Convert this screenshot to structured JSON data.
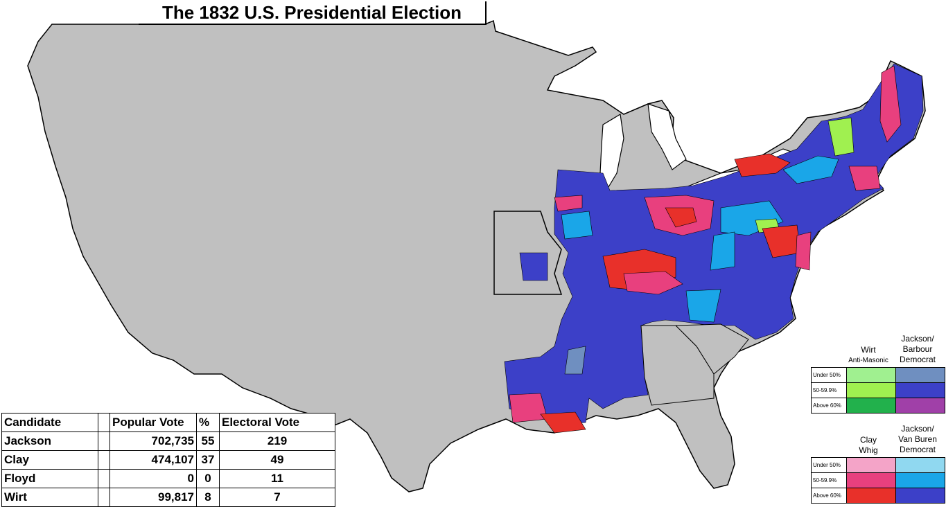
{
  "title": "The 1832 U.S. Presidential Election",
  "colors": {
    "land": "#c0c0c0",
    "border": "#000000",
    "jackson_barbour_dark": "#3c40c8",
    "jackson_vb_light": "#1aa6e8",
    "clay_strong": "#e8302a",
    "clay_mid": "#e8407e",
    "clay_light": "#f4a4c8",
    "wirt_green": "#22b14c",
    "wirt_light": "#a0f07a"
  },
  "results_table": {
    "headers": [
      "Candidate",
      "Popular Vote",
      "%",
      "Electoral Vote"
    ],
    "rows": [
      {
        "candidate": "Jackson",
        "popular_vote": "702,735",
        "pct": "55",
        "electoral_vote": "219"
      },
      {
        "candidate": "Clay",
        "popular_vote": "474,107",
        "pct": "37",
        "electoral_vote": "49"
      },
      {
        "candidate": "Floyd",
        "popular_vote": "0",
        "pct": "0",
        "electoral_vote": "11"
      },
      {
        "candidate": "Wirt",
        "popular_vote": "99,817",
        "pct": "8",
        "electoral_vote": "7"
      }
    ]
  },
  "legend_top": {
    "col1": {
      "title": "Wirt",
      "subtitle": "Anti-Masonic"
    },
    "col2": {
      "title_lines": [
        "Jackson/",
        "Barbour",
        "Democrat"
      ]
    },
    "rows": [
      {
        "label": "Under 50%",
        "c1": "#a0f090",
        "c2": "#6f8fc0"
      },
      {
        "label": "50-59.9%",
        "c1": "#a0f050",
        "c2": "#3c40c8"
      },
      {
        "label": "Above 60%",
        "c1": "#22b14c",
        "c2": "#a040a8"
      }
    ]
  },
  "legend_bottom": {
    "col1": {
      "title_lines": [
        "Clay",
        "Whig"
      ]
    },
    "col2": {
      "title_lines": [
        "Jackson/",
        "Van Buren",
        "Democrat"
      ]
    },
    "rows": [
      {
        "label": "Under 50%",
        "c1": "#f4a4c8",
        "c2": "#90d8f0"
      },
      {
        "label": "50-59.9%",
        "c1": "#e8407e",
        "c2": "#1aa6e8"
      },
      {
        "label": "Above 60%",
        "c1": "#e8302a",
        "c2": "#3c40c8"
      }
    ]
  }
}
